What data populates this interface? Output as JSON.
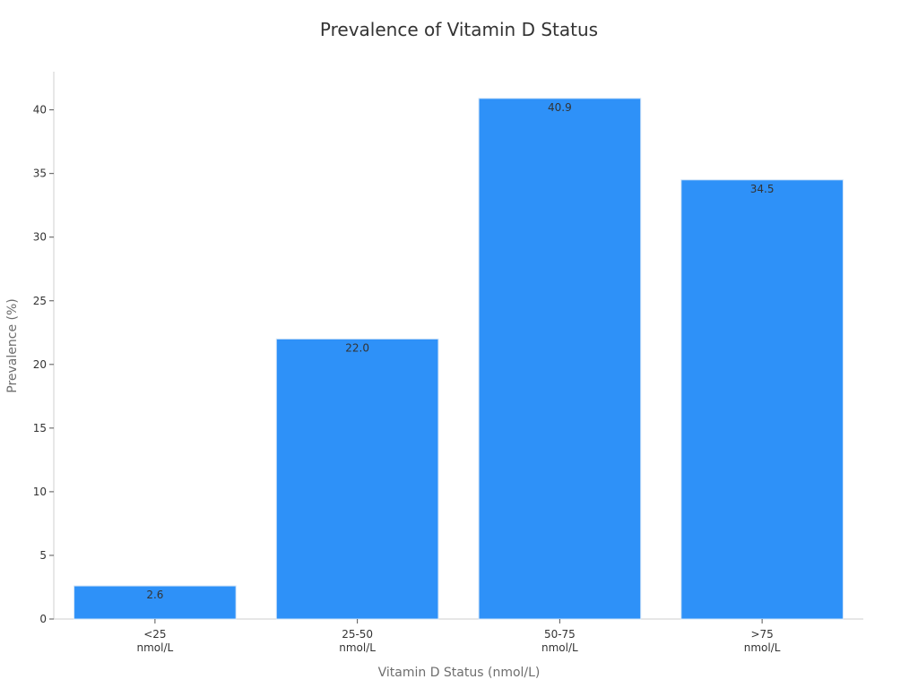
{
  "chart_data": {
    "type": "bar",
    "title": "Prevalence of Vitamin D Status",
    "xlabel": "Vitamin D Status (nmol/L)",
    "ylabel": "Prevalence (%)",
    "categories": [
      [
        "<25",
        "nmol/L"
      ],
      [
        "25-50",
        "nmol/L"
      ],
      [
        "50-75",
        "nmol/L"
      ],
      [
        ">75",
        "nmol/L"
      ]
    ],
    "values": [
      2.6,
      22.0,
      40.9,
      34.5
    ],
    "value_labels": [
      "2.6",
      "22.0",
      "40.9",
      "34.5"
    ],
    "yticks": [
      0,
      5,
      10,
      15,
      20,
      25,
      30,
      35,
      40
    ],
    "ylim": [
      0,
      43
    ],
    "grid": false,
    "legend": "none",
    "bar_color": "#2e91f8",
    "bar_edge_color": "#cfe3f7",
    "axis_color": "#cfcfcf",
    "text_color": "#333333",
    "label_color": "#6e6e6e"
  }
}
